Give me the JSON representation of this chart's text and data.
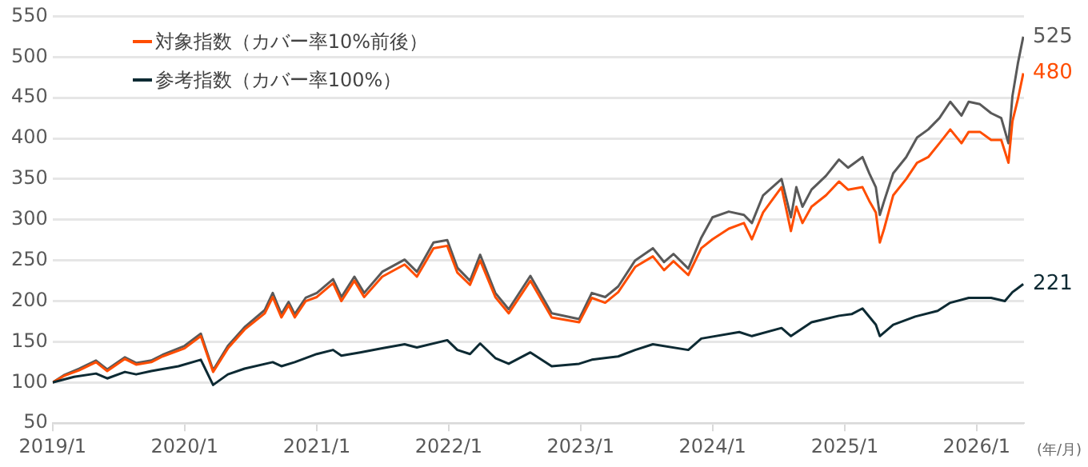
{
  "chart_data": {
    "type": "line",
    "grid": "y",
    "legend": "top left",
    "marker": "none",
    "line_style": "solid",
    "ylim": [
      50,
      550
    ],
    "yticks": [
      50,
      100,
      150,
      200,
      250,
      300,
      350,
      400,
      450,
      500,
      550
    ],
    "xlim": [
      "2019-01-01",
      "2026-05-12"
    ],
    "xticks": [
      {
        "value": "2019-01-01",
        "label": "2019/1"
      },
      {
        "value": "2020-01-01",
        "label": "2020/1"
      },
      {
        "value": "2021-01-01",
        "label": "2021/1"
      },
      {
        "value": "2022-01-01",
        "label": "2022/1"
      },
      {
        "value": "2023-01-01",
        "label": "2023/1"
      },
      {
        "value": "2024-01-01",
        "label": "2024/1"
      },
      {
        "value": "2025-01-01",
        "label": "2025/1"
      },
      {
        "value": "2026-01-01",
        "label": "2026/1"
      }
    ],
    "annotations": [
      "(年/月)"
    ],
    "series": [
      {
        "color": "#595959",
        "x": [
          "2019-01-01",
          "2019-02-01",
          "2019-03-15",
          "2019-05-01",
          "2019-06-01",
          "2019-07-20",
          "2019-08-20",
          "2019-10-01",
          "2019-11-01",
          "2020-01-01",
          "2020-02-15",
          "2020-03-20",
          "2020-04-30",
          "2020-06-15",
          "2020-08-10",
          "2020-09-01",
          "2020-09-25",
          "2020-10-15",
          "2020-11-01",
          "2020-12-01",
          "2021-01-01",
          "2021-02-15",
          "2021-03-10",
          "2021-04-15",
          "2021-05-12",
          "2021-07-01",
          "2021-09-01",
          "2021-10-05",
          "2021-11-20",
          "2021-12-28",
          "2022-01-25",
          "2022-03-01",
          "2022-03-29",
          "2022-05-10",
          "2022-06-16",
          "2022-08-15",
          "2022-10-13",
          "2022-12-28",
          "2023-02-01",
          "2023-03-10",
          "2023-04-15",
          "2023-06-01",
          "2023-07-20",
          "2023-08-20",
          "2023-09-15",
          "2023-10-26",
          "2023-12-01",
          "2024-01-01",
          "2024-02-15",
          "2024-03-28",
          "2024-04-19",
          "2024-05-20",
          "2024-07-10",
          "2024-08-05",
          "2024-08-20",
          "2024-09-06",
          "2024-10-01",
          "2024-11-10",
          "2024-12-16",
          "2025-01-10",
          "2025-02-19",
          "2025-03-10",
          "2025-03-28",
          "2025-04-08",
          "2025-04-20",
          "2025-05-15",
          "2025-06-20",
          "2025-07-20",
          "2025-08-20",
          "2025-09-20",
          "2025-10-20",
          "2025-11-20",
          "2025-12-10",
          "2026-01-10",
          "2026-02-10",
          "2026-03-10",
          "2026-03-30",
          "2026-04-10",
          "2026-04-25",
          "2026-05-10"
        ],
        "values": [
          100,
          109,
          117,
          127,
          116,
          131,
          124,
          127,
          134,
          145,
          160,
          115,
          145,
          168,
          189,
          210,
          184,
          199,
          184,
          204,
          210,
          227,
          205,
          230,
          210,
          236,
          251,
          236,
          272,
          275,
          241,
          225,
          257,
          210,
          190,
          231,
          185,
          178,
          210,
          205,
          218,
          250,
          265,
          248,
          258,
          240,
          278,
          303,
          310,
          306,
          296,
          330,
          350,
          303,
          340,
          316,
          337,
          354,
          374,
          364,
          377,
          357,
          340,
          306,
          323,
          357,
          377,
          401,
          411,
          425,
          445,
          428,
          445,
          442,
          431,
          425,
          394,
          452,
          492,
          525
        ],
        "value_labels": [
          null,
          null,
          null,
          null,
          null,
          null,
          null,
          null,
          null,
          null,
          null,
          null,
          null,
          null,
          null,
          null,
          null,
          null,
          null,
          null,
          null,
          null,
          null,
          null,
          null,
          null,
          null,
          null,
          null,
          null,
          null,
          null,
          null,
          null,
          null,
          null,
          null,
          null,
          null,
          null,
          null,
          null,
          null,
          null,
          null,
          null,
          null,
          null,
          null,
          null,
          null,
          null,
          null,
          null,
          null,
          null,
          null,
          null,
          null,
          null,
          null,
          null,
          null,
          null,
          null,
          null,
          null,
          null,
          null,
          null,
          null,
          null,
          null,
          null,
          null,
          null,
          null,
          null,
          null,
          "525"
        ]
      },
      {
        "name": "対象指数（カバー率10%前後）",
        "color": "#ff4d00",
        "x": [
          "2019-01-01",
          "2019-02-01",
          "2019-03-15",
          "2019-05-01",
          "2019-06-01",
          "2019-07-20",
          "2019-08-20",
          "2019-10-01",
          "2019-11-01",
          "2020-01-01",
          "2020-02-15",
          "2020-03-20",
          "2020-04-30",
          "2020-06-15",
          "2020-08-10",
          "2020-09-01",
          "2020-09-25",
          "2020-10-15",
          "2020-11-01",
          "2020-12-01",
          "2021-01-01",
          "2021-02-15",
          "2021-03-10",
          "2021-04-15",
          "2021-05-12",
          "2021-07-01",
          "2021-09-01",
          "2021-10-05",
          "2021-11-20",
          "2021-12-28",
          "2022-01-25",
          "2022-03-01",
          "2022-03-29",
          "2022-05-10",
          "2022-06-16",
          "2022-08-15",
          "2022-10-13",
          "2022-12-28",
          "2023-02-01",
          "2023-03-10",
          "2023-04-15",
          "2023-06-01",
          "2023-07-20",
          "2023-08-20",
          "2023-09-15",
          "2023-10-26",
          "2023-12-01",
          "2024-01-01",
          "2024-02-15",
          "2024-03-28",
          "2024-04-19",
          "2024-05-20",
          "2024-07-10",
          "2024-08-05",
          "2024-08-20",
          "2024-09-06",
          "2024-10-01",
          "2024-11-10",
          "2024-12-16",
          "2025-01-10",
          "2025-02-19",
          "2025-03-10",
          "2025-03-28",
          "2025-04-08",
          "2025-04-20",
          "2025-05-15",
          "2025-06-20",
          "2025-07-20",
          "2025-08-20",
          "2025-09-20",
          "2025-10-20",
          "2025-11-20",
          "2025-12-10",
          "2026-01-10",
          "2026-02-10",
          "2026-03-10",
          "2026-03-30",
          "2026-04-10",
          "2026-04-25",
          "2026-05-10"
        ],
        "values": [
          100,
          108,
          115,
          125,
          114,
          129,
          122,
          125,
          132,
          142,
          157,
          113,
          142,
          165,
          185,
          205,
          180,
          195,
          180,
          200,
          205,
          222,
          200,
          225,
          205,
          230,
          245,
          230,
          265,
          268,
          235,
          220,
          250,
          205,
          185,
          225,
          180,
          174,
          204,
          198,
          211,
          242,
          255,
          238,
          249,
          232,
          265,
          276,
          289,
          296,
          276,
          309,
          340,
          286,
          316,
          296,
          316,
          330,
          347,
          337,
          340,
          323,
          309,
          272,
          289,
          330,
          350,
          370,
          377,
          394,
          411,
          394,
          408,
          408,
          398,
          398,
          370,
          421,
          448,
          480
        ],
        "value_labels": [
          null,
          null,
          null,
          null,
          null,
          null,
          null,
          null,
          null,
          null,
          null,
          null,
          null,
          null,
          null,
          null,
          null,
          null,
          null,
          null,
          null,
          null,
          null,
          null,
          null,
          null,
          null,
          null,
          null,
          null,
          null,
          null,
          null,
          null,
          null,
          null,
          null,
          null,
          null,
          null,
          null,
          null,
          null,
          null,
          null,
          null,
          null,
          null,
          null,
          null,
          null,
          null,
          null,
          null,
          null,
          null,
          null,
          null,
          null,
          null,
          null,
          null,
          null,
          null,
          null,
          null,
          null,
          null,
          null,
          null,
          null,
          null,
          null,
          null,
          null,
          null,
          null,
          null,
          null,
          "480"
        ]
      },
      {
        "name": "参考指数（カバー率100%）",
        "color": "#0d2a33",
        "x": [
          "2019-01-01",
          "2019-03-01",
          "2019-05-01",
          "2019-06-01",
          "2019-07-20",
          "2019-08-20",
          "2019-10-01",
          "2019-12-15",
          "2020-02-15",
          "2020-03-20",
          "2020-04-30",
          "2020-06-15",
          "2020-09-01",
          "2020-09-25",
          "2020-11-01",
          "2021-01-01",
          "2021-02-15",
          "2021-03-10",
          "2021-05-01",
          "2021-07-01",
          "2021-09-01",
          "2021-10-05",
          "2021-12-28",
          "2022-01-25",
          "2022-03-01",
          "2022-03-29",
          "2022-05-10",
          "2022-06-16",
          "2022-08-15",
          "2022-10-13",
          "2022-12-28",
          "2023-02-01",
          "2023-04-15",
          "2023-06-01",
          "2023-07-20",
          "2023-10-26",
          "2023-12-01",
          "2024-03-15",
          "2024-04-19",
          "2024-07-10",
          "2024-08-05",
          "2024-10-01",
          "2024-12-16",
          "2025-01-20",
          "2025-02-19",
          "2025-03-28",
          "2025-04-08",
          "2025-05-15",
          "2025-07-15",
          "2025-09-15",
          "2025-10-20",
          "2025-12-10",
          "2026-02-10",
          "2026-03-20",
          "2026-04-10",
          "2026-05-10"
        ],
        "values": [
          100,
          107,
          111,
          105,
          113,
          110,
          114,
          120,
          128,
          97,
          110,
          117,
          125,
          120,
          125,
          135,
          140,
          133,
          137,
          142,
          147,
          143,
          152,
          140,
          135,
          148,
          130,
          123,
          137,
          120,
          123,
          128,
          132,
          140,
          147,
          140,
          154,
          162,
          157,
          167,
          157,
          174,
          182,
          184,
          191,
          171,
          157,
          171,
          181,
          188,
          198,
          204,
          204,
          200,
          211,
          221
        ],
        "value_labels": [
          null,
          null,
          null,
          null,
          null,
          null,
          null,
          null,
          null,
          null,
          null,
          null,
          null,
          null,
          null,
          null,
          null,
          null,
          null,
          null,
          null,
          null,
          null,
          null,
          null,
          null,
          null,
          null,
          null,
          null,
          null,
          null,
          null,
          null,
          null,
          null,
          null,
          null,
          null,
          null,
          null,
          null,
          null,
          null,
          null,
          null,
          null,
          null,
          null,
          null,
          null,
          null,
          null,
          null,
          null,
          "221"
        ]
      }
    ]
  }
}
